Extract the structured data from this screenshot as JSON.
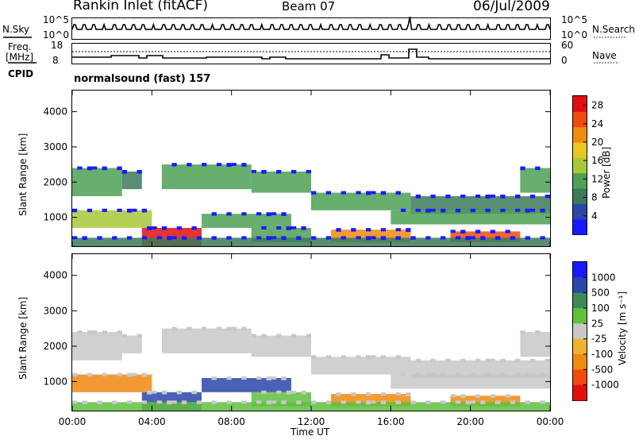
{
  "header": {
    "title": "Rankin Inlet (fitACF)",
    "beam": "Beam 07",
    "date": "06/Jul/2009"
  },
  "top_panels": {
    "nsky_label": "N.Sky",
    "nsky_ticks": [
      "10^5",
      "10^0"
    ],
    "nsearch_label": "N.Search",
    "freq_label": "Freq.",
    "freq_unit": "[MHz]",
    "freq_ticks": [
      "18",
      "8"
    ],
    "nave_ticks": [
      "60",
      "0"
    ],
    "nave_label": "Nave",
    "cpid_label": "CPID",
    "cpid_value": "normalsound (fast) 157"
  },
  "colors": {
    "power": [
      "#1a1aff",
      "#2a46a8",
      "#3c7a5a",
      "#4ea056",
      "#a8c83a",
      "#e6c820",
      "#f08a10",
      "#f04a10",
      "#e01010"
    ],
    "velocity": [
      "#e01010",
      "#f04a10",
      "#f08a10",
      "#f0b030",
      "#c8c8c8",
      "#60c040",
      "#3c8a5a",
      "#2a46a8",
      "#1a1aff"
    ]
  },
  "chart_data": [
    {
      "type": "heatmap",
      "title": "",
      "xlabel": "",
      "ylabel": "Slant Range [km]",
      "x_ticks": [
        "00:00",
        "04:00",
        "08:00",
        "12:00",
        "16:00",
        "20:00",
        "00:00"
      ],
      "y_ticks": [
        "1000",
        "2000",
        "3000",
        "4000"
      ],
      "xlim": [
        0,
        24
      ],
      "ylim": [
        180,
        4600
      ],
      "colorbar": {
        "label": "Power [dB]",
        "ticks": [
          "4",
          "8",
          "12",
          "16",
          "20",
          "24",
          "28"
        ],
        "range": [
          0,
          30
        ]
      },
      "bands": [
        {
          "t0": 0.0,
          "t1": 2.5,
          "r_lo": 1600,
          "r_hi": 2400,
          "v": 10
        },
        {
          "t0": 2.5,
          "t1": 3.5,
          "r_lo": 1800,
          "r_hi": 2300,
          "v": 9
        },
        {
          "t0": 4.5,
          "t1": 9.0,
          "r_lo": 1800,
          "r_hi": 2500,
          "v": 12
        },
        {
          "t0": 9.0,
          "t1": 12.0,
          "r_lo": 1700,
          "r_hi": 2300,
          "v": 10
        },
        {
          "t0": 12.0,
          "t1": 17.0,
          "r_lo": 1200,
          "r_hi": 1700,
          "v": 10
        },
        {
          "t0": 17.0,
          "t1": 24.0,
          "r_lo": 1100,
          "r_hi": 1600,
          "v": 9
        },
        {
          "t0": 22.5,
          "t1": 24.0,
          "r_lo": 1700,
          "r_hi": 2400,
          "v": 10
        },
        {
          "t0": 0.0,
          "t1": 4.0,
          "r_lo": 700,
          "r_hi": 1200,
          "v": 14
        },
        {
          "t0": 3.5,
          "t1": 6.5,
          "r_lo": 180,
          "r_hi": 700,
          "v": 28
        },
        {
          "t0": 6.5,
          "t1": 11.0,
          "r_lo": 700,
          "r_hi": 1100,
          "v": 12
        },
        {
          "t0": 9.0,
          "t1": 12.0,
          "r_lo": 300,
          "r_hi": 700,
          "v": 12
        },
        {
          "t0": 13.0,
          "t1": 17.0,
          "r_lo": 300,
          "r_hi": 650,
          "v": 22
        },
        {
          "t0": 16.0,
          "t1": 24.0,
          "r_lo": 800,
          "r_hi": 1200,
          "v": 10
        },
        {
          "t0": 19.0,
          "t1": 22.5,
          "r_lo": 300,
          "r_hi": 600,
          "v": 24
        },
        {
          "t0": 0.0,
          "t1": 24.0,
          "r_lo": 180,
          "r_hi": 420,
          "v": 8
        }
      ]
    },
    {
      "type": "heatmap",
      "title": "",
      "xlabel": "Time UT",
      "ylabel": "Slant Range [km]",
      "x_ticks": [
        "00:00",
        "04:00",
        "08:00",
        "12:00",
        "16:00",
        "20:00",
        "00:00"
      ],
      "y_ticks": [
        "1000",
        "2000",
        "3000",
        "4000"
      ],
      "xlim": [
        0,
        24
      ],
      "ylim": [
        180,
        4600
      ],
      "colorbar": {
        "label": "Velocity [m s⁻¹]",
        "ticks": [
          "1000",
          "500",
          "100",
          "25",
          "-25",
          "-100",
          "-500",
          "-1000"
        ]
      },
      "bands": [
        {
          "t0": 0.0,
          "t1": 2.5,
          "r_lo": 1600,
          "r_hi": 2400,
          "v": 0
        },
        {
          "t0": 2.5,
          "t1": 3.5,
          "r_lo": 1800,
          "r_hi": 2300,
          "v": 0
        },
        {
          "t0": 4.5,
          "t1": 9.0,
          "r_lo": 1800,
          "r_hi": 2500,
          "v": 0
        },
        {
          "t0": 9.0,
          "t1": 12.0,
          "r_lo": 1700,
          "r_hi": 2300,
          "v": 0
        },
        {
          "t0": 12.0,
          "t1": 17.0,
          "r_lo": 1200,
          "r_hi": 1700,
          "v": 0
        },
        {
          "t0": 17.0,
          "t1": 24.0,
          "r_lo": 1100,
          "r_hi": 1600,
          "v": 0
        },
        {
          "t0": 22.5,
          "t1": 24.0,
          "r_lo": 1700,
          "r_hi": 2400,
          "v": 0
        },
        {
          "t0": 0.0,
          "t1": 4.0,
          "r_lo": 700,
          "r_hi": 1200,
          "v": -150
        },
        {
          "t0": 3.5,
          "t1": 6.5,
          "r_lo": 180,
          "r_hi": 700,
          "v": 300
        },
        {
          "t0": 6.5,
          "t1": 11.0,
          "r_lo": 700,
          "r_hi": 1100,
          "v": 150
        },
        {
          "t0": 9.0,
          "t1": 12.0,
          "r_lo": 300,
          "r_hi": 700,
          "v": 60
        },
        {
          "t0": 13.0,
          "t1": 17.0,
          "r_lo": 300,
          "r_hi": 650,
          "v": -200
        },
        {
          "t0": 16.0,
          "t1": 24.0,
          "r_lo": 800,
          "r_hi": 1200,
          "v": 0
        },
        {
          "t0": 19.0,
          "t1": 22.5,
          "r_lo": 300,
          "r_hi": 600,
          "v": -200
        },
        {
          "t0": 0.0,
          "t1": 24.0,
          "r_lo": 180,
          "r_hi": 420,
          "v": 60
        }
      ]
    }
  ]
}
